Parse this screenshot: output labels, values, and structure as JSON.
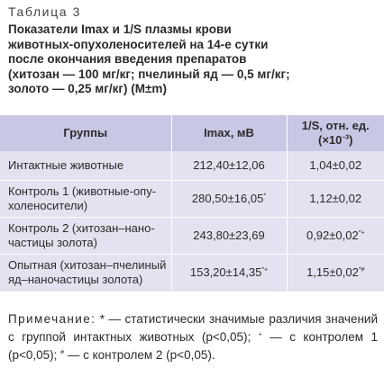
{
  "table_label": "Таблица 3",
  "caption_lines": [
    "Показатели Imax и 1/S плазмы крови",
    "животных-опухоленосителей на 14-е сутки",
    "после окончания введения препаратов",
    "(хитозан — 100 мг/кг; пчелиный яд — 0,5 мг/кг;",
    "золото — 0,25 мг/кг) (M±m)"
  ],
  "headers": {
    "group": "Группы",
    "imax": "Imax, мВ",
    "s_line1": "1/S, отн. ед.",
    "s_line2_pre": "(×10",
    "s_line2_exp": "–3",
    "s_line2_post": ")"
  },
  "rows": [
    {
      "group_lines": [
        "Интактные животные"
      ],
      "imax": "212,40±12,06",
      "imax_mark": "",
      "s": "1,04±0,02",
      "s_mark": ""
    },
    {
      "group_lines": [
        "Контроль 1 (животные-опу-",
        "холеносители)"
      ],
      "imax": "280,50±16,05",
      "imax_mark": "*",
      "s": "1,12±0,02",
      "s_mark": ""
    },
    {
      "group_lines": [
        "Контроль 2 (хитозан–нано-",
        "частицы золота)"
      ],
      "imax": "243,80±23,69",
      "imax_mark": "",
      "s": "0,92±0,02",
      "s_mark": "*+"
    },
    {
      "group_lines": [
        "Опытная (хитозан–пчелиный",
        "яд–наночастицы золота)"
      ],
      "imax": "153,20±14,35",
      "imax_mark": "*+",
      "s": "1,15±0,02",
      "s_mark": "*#"
    }
  ],
  "note": {
    "label": "Примечание:",
    "p1": " * — статистически значимые различия значений с группой интактных животных (p<0,05); ",
    "plus": "+",
    "p2": " — с контролем 1 (p<0,05); ",
    "hash": "#",
    "p3": " — с контролем 2 (p<0,05)."
  }
}
